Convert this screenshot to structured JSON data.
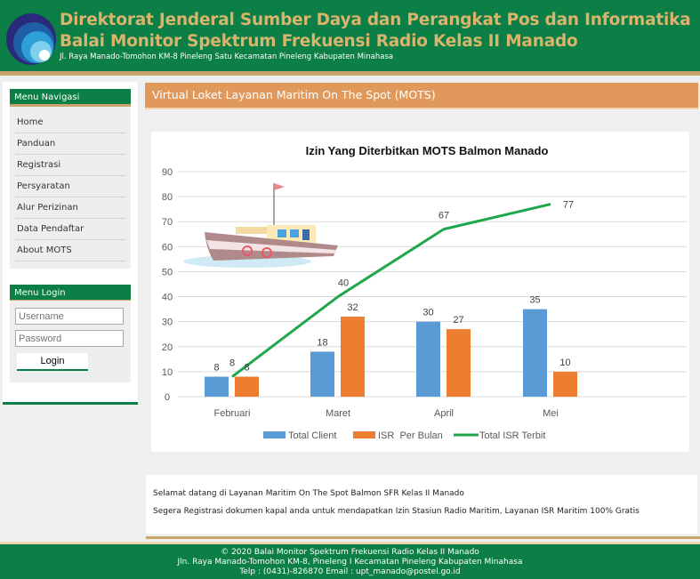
{
  "header": {
    "title1": "Direktorat Jenderal Sumber Daya dan Perangkat Pos dan Informatika",
    "title2": "Balai Monitor Spektrum Frekuensi Radio Kelas II Manado",
    "address": "Jl. Raya Manado-Tomohon KM-8 Pineleng Satu Kecamatan Pineleng Kabupaten Minahasa"
  },
  "sidebar": {
    "nav_title": "Menu Navigasi",
    "items": [
      {
        "label": "Home"
      },
      {
        "label": "Panduan"
      },
      {
        "label": "Registrasi"
      },
      {
        "label": "Persyaratan"
      },
      {
        "label": "Alur Perizinan"
      },
      {
        "label": "Data Pendaftar"
      },
      {
        "label": "About MOTS"
      }
    ],
    "login_title": "Menu Login",
    "username_placeholder": "Username",
    "password_placeholder": "Password",
    "login_label": "Login"
  },
  "main": {
    "title": "Virtual Loket Layanan Maritim On The Spot (MOTS)",
    "welcome": "Selamat datang di Layanan Maritim On The Spot Balmon SFR Kelas II Manado",
    "info": "Segera Registrasi dokumen kapal anda untuk mendapatkan Izin Stasiun Radio Maritim, Layanan ISR Maritim 100% Gratis"
  },
  "footer": {
    "line1": "© 2020 Balai Monitor Spektrum Frekuensi Radio Kelas II Manado",
    "line2": "Jln. Raya Manado-Tomohon KM-8, Pineleng I Kecamatan Pineleng Kabupaten Minahasa",
    "line3": "Telp : (0431)-826870 Email : upt_manado@postel.go.id"
  },
  "colors": {
    "header_green": "#0b7f45",
    "gold": "#d9b46c",
    "orange_bar": "#e0995b"
  },
  "chart_data": {
    "type": "bar+line",
    "title": "Izin Yang Diterbitkan MOTS Balmon Manado",
    "categories": [
      "Februari",
      "Maret",
      "April",
      "Mei"
    ],
    "ylim": [
      0,
      90
    ],
    "yticks": [
      0,
      10,
      20,
      30,
      40,
      50,
      60,
      70,
      80,
      90
    ],
    "grid": true,
    "legend": "bottom",
    "series": [
      {
        "name": "Total Client",
        "type": "bar",
        "color": "#5b9bd5",
        "values": [
          8,
          18,
          30,
          35
        ]
      },
      {
        "name": "ISR  Per Bulan",
        "type": "bar",
        "color": "#ed7d31",
        "values": [
          8,
          32,
          27,
          10
        ]
      },
      {
        "name": "Total ISR Terbit",
        "type": "line",
        "color": "#1fa64a",
        "values": [
          8,
          40,
          67,
          77
        ]
      }
    ]
  }
}
